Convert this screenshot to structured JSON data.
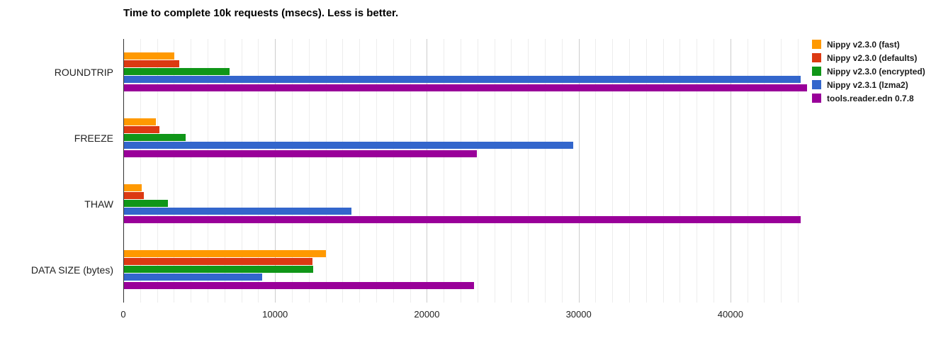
{
  "chart_data": {
    "type": "bar",
    "orientation": "horizontal",
    "title": "Time to complete 10k requests (msecs). Less is better.",
    "categories": [
      "ROUNDTRIP",
      "FREEZE",
      "THAW",
      "DATA SIZE (bytes)"
    ],
    "series": [
      {
        "name": "Nippy v2.3.0 (fast)",
        "color": "#FF9900",
        "values": [
          3300,
          2100,
          1150,
          13300
        ]
      },
      {
        "name": "Nippy v2.3.0 (defaults)",
        "color": "#DC3912",
        "values": [
          3650,
          2350,
          1300,
          12400
        ]
      },
      {
        "name": "Nippy v2.3.0 (encrypted)",
        "color": "#109618",
        "values": [
          6950,
          4050,
          2900,
          12450
        ]
      },
      {
        "name": "Nippy v2.3.1 (lzma2)",
        "color": "#3366CC",
        "values": [
          44600,
          29600,
          15000,
          9100
        ]
      },
      {
        "name": "tools.reader.edn 0.7.8",
        "color": "#990099",
        "values": [
          45000,
          23250,
          44600,
          23050
        ]
      }
    ],
    "x_axis": {
      "min": 0,
      "max": 45000,
      "ticks": [
        0,
        10000,
        20000,
        30000,
        40000
      ],
      "tick_labels": [
        "0",
        "10000",
        "20000",
        "30000",
        "40000"
      ],
      "minor_gridlines_per_major": 9
    },
    "legend_position": "right",
    "grid": "on"
  }
}
